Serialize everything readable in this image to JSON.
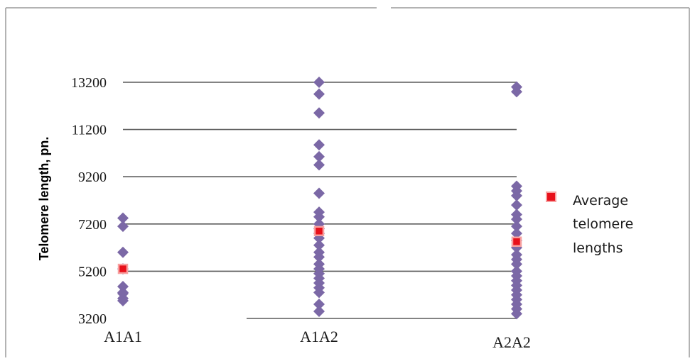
{
  "chart_data": {
    "type": "scatter",
    "title": "",
    "ylabel": "Telomere  length, pn.",
    "xlabel": "",
    "categories": [
      "A1A1",
      "A1A2",
      "A2A2"
    ],
    "yticks": [
      "3200",
      "5200",
      "7200",
      "9200",
      "11200",
      "13200"
    ],
    "ylim": [
      3200,
      13200
    ],
    "grid": true,
    "legend_position": "right",
    "colors": {
      "points": "#7b68a6",
      "average": "#e8101a",
      "average_border": "#f7a0a0",
      "grid": "#5a5a5a"
    },
    "series": [
      {
        "name": "",
        "marker": "diamond",
        "points": [
          {
            "category": "A1A1",
            "values": [
              7450,
              7100,
              6000,
              5300,
              4550,
              4250,
              3950,
              4050,
              4300
            ]
          },
          {
            "category": "A1A2",
            "values": [
              13200,
              12700,
              11900,
              10550,
              10050,
              9700,
              8500,
              7700,
              7500,
              7200,
              7000,
              6800,
              6600,
              6300,
              6000,
              5800,
              5500,
              5300,
              5100,
              4900,
              4700,
              4500,
              4300,
              3800,
              3500
            ]
          },
          {
            "category": "A2A2",
            "values": [
              13000,
              12800,
              8800,
              8600,
              8400,
              8000,
              7600,
              7400,
              7100,
              6800,
              6500,
              6200,
              5900,
              5700,
              5500,
              5200,
              5000,
              4800,
              4600,
              4400,
              4200,
              4000,
              3800,
              3600,
              3400
            ]
          }
        ]
      },
      {
        "name": "Average telomere lengths",
        "marker": "square",
        "points": [
          {
            "category": "A1A1",
            "value": 5300
          },
          {
            "category": "A1A2",
            "value": 6900
          },
          {
            "category": "A2A2",
            "value": 6450
          }
        ]
      }
    ],
    "legend": {
      "lines": [
        "Average",
        "telomere",
        "lengths"
      ]
    }
  }
}
